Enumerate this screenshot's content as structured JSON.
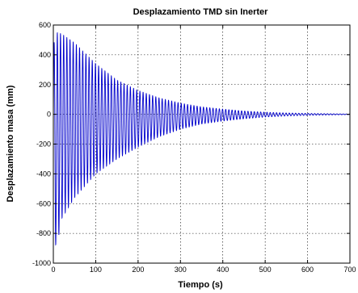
{
  "chart_data": {
    "type": "line",
    "title": "Desplazamiento TMD sin Inerter",
    "xlabel": "Tiempo (s)",
    "ylabel": "Desplazamiento masa (mm)",
    "xlim": [
      0,
      700
    ],
    "ylim": [
      -1000,
      600
    ],
    "xticks": [
      0,
      100,
      200,
      300,
      400,
      500,
      600,
      700
    ],
    "yticks": [
      -1000,
      -800,
      -600,
      -400,
      -200,
      0,
      200,
      400,
      600
    ],
    "grid": true,
    "series": [
      {
        "color": "#0000cc",
        "envelope": {
          "t": [
            0,
            5,
            10,
            20,
            50,
            100,
            150,
            200,
            250,
            300,
            350,
            400,
            450,
            500,
            550,
            600,
            650,
            700
          ],
          "upper": [
            450,
            540,
            550,
            540,
            480,
            340,
            230,
            160,
            110,
            75,
            50,
            35,
            22,
            14,
            9,
            6,
            4,
            2
          ],
          "lower": [
            -500,
            -880,
            -860,
            -700,
            -560,
            -400,
            -300,
            -220,
            -150,
            -100,
            -65,
            -45,
            -30,
            -18,
            -11,
            -7,
            -4,
            -2
          ]
        },
        "period_s": 7.5
      }
    ]
  }
}
